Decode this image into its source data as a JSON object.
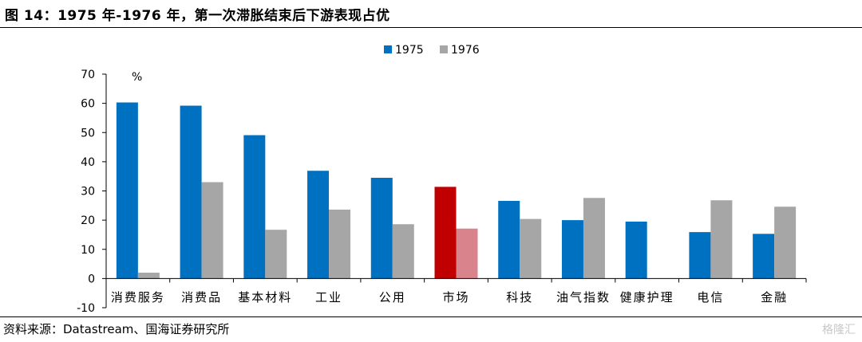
{
  "header": {
    "title": "图 14：1975 年-1976 年，第一次滞胀结束后下游表现占优"
  },
  "footer": {
    "source": "资料来源：Datastream、国海证券研究所",
    "watermark": "格隆汇"
  },
  "chart_data": {
    "type": "bar",
    "unit_label": "%",
    "categories": [
      "消费服务",
      "消费品",
      "基本材料",
      "工业",
      "公用",
      "市场",
      "科技",
      "油气指数",
      "健康护理",
      "电信",
      "金融"
    ],
    "series": [
      {
        "name": "1975",
        "values": [
          60.3,
          59.2,
          49.1,
          36.9,
          34.5,
          31.4,
          26.6,
          20.0,
          19.5,
          15.9,
          15.3
        ],
        "color": "#0070c0"
      },
      {
        "name": "1976",
        "values": [
          2.0,
          33.0,
          16.7,
          23.6,
          18.6,
          17.1,
          20.4,
          27.6,
          0.0,
          26.8,
          24.6
        ],
        "color": "#a6a6a6"
      }
    ],
    "highlight": {
      "category": "市场",
      "colors": [
        "#c00000",
        "#d9848c"
      ]
    },
    "ylim": [
      -10,
      70
    ],
    "yticks": [
      -10,
      0,
      10,
      20,
      30,
      40,
      50,
      60,
      70
    ],
    "legend_position": "top-center",
    "grid": false
  }
}
